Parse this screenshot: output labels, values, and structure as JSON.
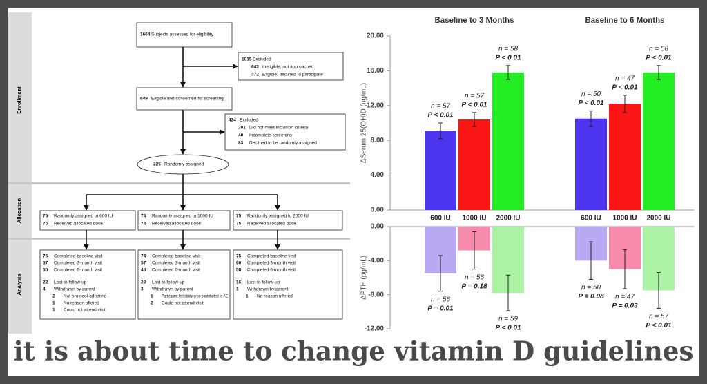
{
  "flowchart": {
    "sections": [
      "Enrollment",
      "Allocation",
      "Analysis"
    ],
    "assessed": {
      "n": "1664",
      "text": "Subjects assessed for eligibility"
    },
    "excluded1": {
      "n": "1015",
      "text": "Excluded",
      "sub": [
        [
          "643",
          "Ineligible, not approached"
        ],
        [
          "372",
          "Eligible, declined to participate"
        ]
      ]
    },
    "consented": {
      "n": "649",
      "text": "Eligible and consented for screening"
    },
    "excluded2": {
      "n": "424",
      "text": "Excluded",
      "sub": [
        [
          "301",
          "Did not meet inclusion criteria"
        ],
        [
          "40",
          "Incomplete screening"
        ],
        [
          "83",
          "Declined to be randomly assigned"
        ]
      ]
    },
    "randomized": {
      "n": "225",
      "text": "Randomly assigned"
    },
    "allocation": [
      [
        [
          "76",
          "Randomly assigned to 600 IU"
        ],
        [
          "76",
          "Received allocated dose"
        ]
      ],
      [
        [
          "74",
          "Randomly assigned to 1000 IU"
        ],
        [
          "74",
          "Received allocated dose"
        ]
      ],
      [
        [
          "75",
          "Randomly assigned to 2000 IU"
        ],
        [
          "75",
          "Received allocated dose"
        ]
      ]
    ],
    "analysis": [
      {
        "visits": [
          [
            "76",
            "Completed baseline visit"
          ],
          [
            "57",
            "Completed 3-month visit"
          ],
          [
            "50",
            "Completed 6-month visit"
          ]
        ],
        "losses": [
          {
            "n": "22",
            "text": "Lost to follow-up",
            "sub": []
          },
          {
            "n": "4",
            "text": "Withdrawn by parent",
            "sub": [
              [
                "2",
                "Not protocol-adhering"
              ],
              [
                "1",
                "No reason offered"
              ],
              [
                "1",
                "Could not attend visit"
              ]
            ]
          }
        ]
      },
      {
        "visits": [
          [
            "74",
            "Completed baseline visit"
          ],
          [
            "57",
            "Completed 3-month visit"
          ],
          [
            "48",
            "Completed 6-month visit"
          ]
        ],
        "losses": [
          {
            "n": "23",
            "text": "Lost to follow-up",
            "sub": []
          },
          {
            "n": "3",
            "text": "Withdrawn by parent",
            "sub": [
              [
                "1",
                "Participant felt study drug contributed to AE"
              ],
              [
                "2",
                "Could not attend visit"
              ]
            ]
          }
        ]
      },
      {
        "visits": [
          [
            "75",
            "Completed baseline visit"
          ],
          [
            "60",
            "Completed 3-month visit"
          ],
          [
            "58",
            "Completed 6-month visit"
          ]
        ],
        "losses": [
          {
            "n": "16",
            "text": "Lost to follow-up",
            "sub": []
          },
          {
            "n": "1",
            "text": "Withdrawn by parent",
            "sub": [
              [
                "1",
                "No reason offered"
              ]
            ]
          }
        ]
      }
    ]
  },
  "chart_data": [
    {
      "type": "bar",
      "categories": [
        "Baseline to 3 Months",
        "Baseline to 6 Months"
      ],
      "ylabel": "ΔSerum 25(OH)D (ng/mL)",
      "ylim": [
        0,
        20
      ],
      "yticks": [
        {
          "value": 0,
          "label": "0.00"
        },
        {
          "value": 4,
          "label": "4.00"
        },
        {
          "value": 8,
          "label": "8.00"
        },
        {
          "value": 12,
          "label": "12.00"
        },
        {
          "value": 16,
          "label": "16.00"
        },
        {
          "value": 20,
          "label": "20.00"
        }
      ],
      "series": [
        {
          "name": "600 IU",
          "color": "#4b35ee",
          "values": [
            9.1,
            10.5
          ],
          "errors": [
            0.9,
            0.9
          ],
          "n_labels": [
            "n = 57",
            "n = 50"
          ],
          "p_labels": [
            "P < 0.01",
            "P < 0.01"
          ]
        },
        {
          "name": "1000 IU",
          "color": "#fb1515",
          "values": [
            10.4,
            12.2
          ],
          "errors": [
            0.8,
            1.0
          ],
          "n_labels": [
            "n = 57",
            "n = 47"
          ],
          "p_labels": [
            "P < 0.01",
            "P < 0.01"
          ]
        },
        {
          "name": "2000 IU",
          "color": "#22ee22",
          "values": [
            15.8,
            15.8
          ],
          "errors": [
            0.8,
            0.8
          ],
          "n_labels": [
            "n = 58",
            "n = 58"
          ],
          "p_labels": [
            "P < 0.01",
            "P < 0.01"
          ]
        }
      ]
    },
    {
      "type": "bar",
      "categories": [
        null,
        null
      ],
      "ylabel": "ΔPTH (pg/mL)",
      "ylim": [
        -12,
        0
      ],
      "yticks": [
        {
          "value": 0,
          "label": "0.00"
        },
        {
          "value": -4,
          "label": "-4.00"
        },
        {
          "value": -8,
          "label": "-8.00"
        },
        {
          "value": -12,
          "label": "-12.00"
        }
      ],
      "series": [
        {
          "color": "#b9a8f2",
          "values": [
            -5.5,
            -4.0
          ],
          "errors": [
            2.1,
            2.2
          ],
          "n_labels": [
            "n = 56",
            "n = 50"
          ],
          "p_labels": [
            "P = 0.01",
            "P = 0.08"
          ]
        },
        {
          "color": "#f78bab",
          "values": [
            -2.8,
            -5.0
          ],
          "errors": [
            2.2,
            2.3
          ],
          "n_labels": [
            "n = 56",
            "n = 47"
          ],
          "p_labels": [
            "P = 0.18",
            "P = 0.03"
          ]
        },
        {
          "color": "#abf2a4",
          "values": [
            -7.8,
            -7.5
          ],
          "errors": [
            2.1,
            2.1
          ],
          "n_labels": [
            "n = 59",
            "n = 57"
          ],
          "p_labels": [
            "P < 0.01",
            "P < 0.01"
          ]
        }
      ]
    }
  ],
  "caption": "it is about time to change vitamin D guidelines"
}
